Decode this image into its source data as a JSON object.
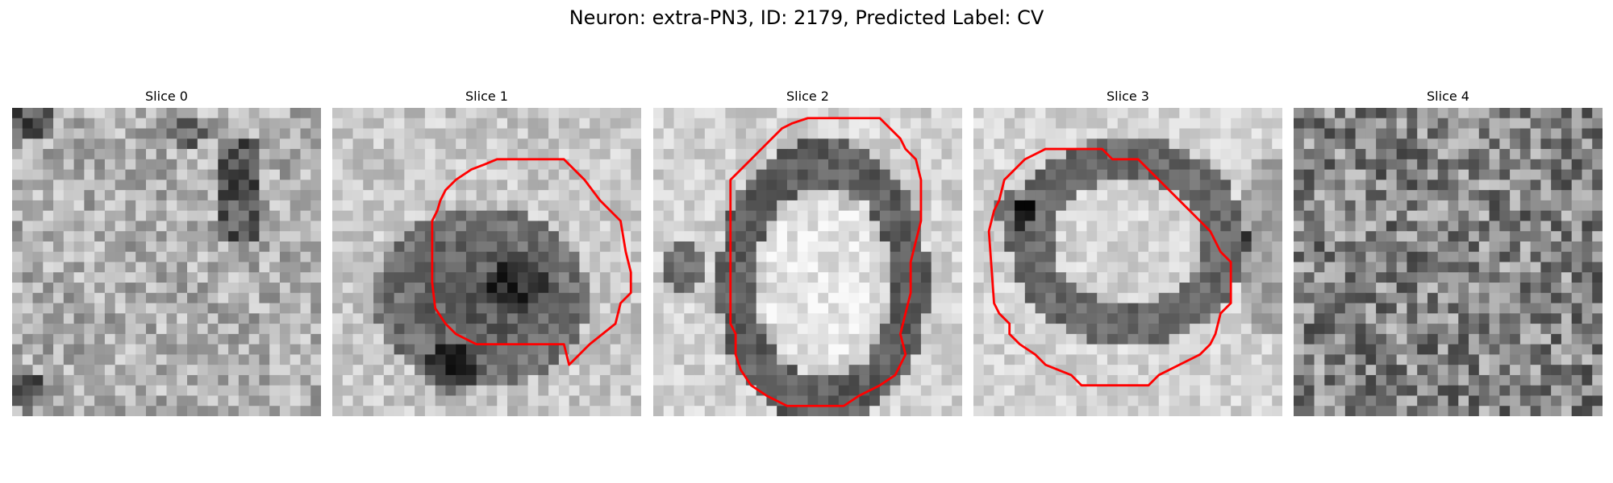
{
  "figure": {
    "title": "Neuron: extra-PN3, ID: 2179, Predicted Label: CV"
  },
  "panels": [
    {
      "label": "Slice 0",
      "has_contour": false
    },
    {
      "label": "Slice 1",
      "has_contour": true
    },
    {
      "label": "Slice 2",
      "has_contour": true
    },
    {
      "label": "Slice 3",
      "has_contour": true
    },
    {
      "label": "Slice 4",
      "has_contour": false
    }
  ],
  "colors": {
    "contour": "#ff0000",
    "background": "#ffffff"
  }
}
